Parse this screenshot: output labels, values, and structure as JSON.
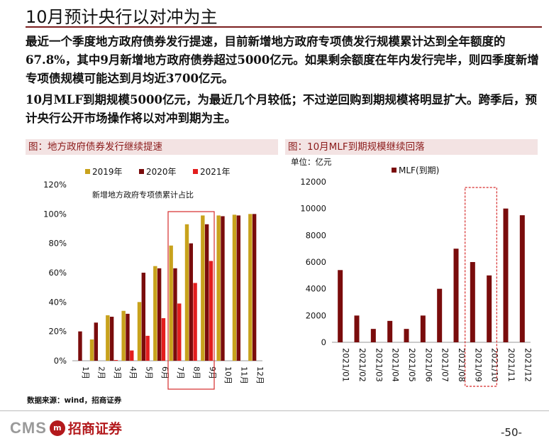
{
  "page": {
    "title": "10月预计央行以对冲为主",
    "paragraphs": [
      "最近一个季度地方政府债券发行提速，目前新增地方政府专项债发行规模累计达到全年额度的67.8%，其中9月新增地方政府债券超过5000亿元。如果剩余额度在年内发行完毕，则四季度新增专项债规模可能达到月均近3700亿元。",
      "10月MLF到期规模5000亿元，为最近几个月较低；不过逆回购到期规模将明显扩大。跨季后，预计央行公开市场操作将以对冲到期为主。"
    ],
    "source": "数据来源：wind，招商证券",
    "page_number": "-50-",
    "logo": {
      "latin": "CMS",
      "chinese": "招商证券",
      "mark": "m"
    }
  },
  "colors": {
    "y2019": "#c8a21c",
    "y2020": "#7a0c0c",
    "y2021": "#e31e1e",
    "mlf": "#7a0c0c",
    "highlight": "#d62b2b"
  },
  "chart_data": [
    {
      "type": "bar",
      "title": "图：地方政府债券发行继续提速",
      "annotation": "新增地方政府专项债累计占比",
      "categories": [
        "1月",
        "2月",
        "3月",
        "4月",
        "5月",
        "6月",
        "7月",
        "8月",
        "9月",
        "10月",
        "11月",
        "12月"
      ],
      "series": [
        {
          "name": "2019年",
          "values": [
            0,
            14.5,
            31,
            34,
            40,
            64.5,
            78.5,
            93,
            99,
            99,
            99.5,
            100
          ]
        },
        {
          "name": "2020年",
          "values": [
            20,
            26,
            30,
            32,
            60,
            63,
            63,
            80,
            93,
            98.5,
            99,
            100
          ]
        },
        {
          "name": "2021年",
          "values": [
            0,
            0,
            0.5,
            7,
            17,
            29,
            39,
            53,
            68,
            null,
            null,
            null
          ]
        }
      ],
      "ylim": [
        0,
        120
      ],
      "yticks": [
        "0%",
        "20%",
        "40%",
        "60%",
        "80%",
        "100%",
        "120%"
      ],
      "highlight": [
        "7月",
        "8月",
        "9月"
      ],
      "legend": "top",
      "grid": false
    },
    {
      "type": "bar",
      "title": "图：10月MLF到期规模继续回落",
      "unit_label": "单位：亿元",
      "categories": [
        "2021/01",
        "2021/02",
        "2021/03",
        "2021/04",
        "2021/05",
        "2021/06",
        "2021/07",
        "2021/08",
        "2021/09",
        "2021/10",
        "2021/11",
        "2021/12"
      ],
      "series": [
        {
          "name": "MLF(到期)",
          "values": [
            5400,
            2000,
            1000,
            1600,
            1000,
            2000,
            4000,
            7000,
            6000,
            5000,
            10000,
            9500
          ]
        }
      ],
      "ylim": [
        0,
        12000
      ],
      "yticks": [
        "0",
        "2000",
        "4000",
        "6000",
        "8000",
        "10000",
        "12000"
      ],
      "highlight": [
        "2021/09",
        "2021/10"
      ],
      "legend": "top",
      "grid": false
    }
  ]
}
